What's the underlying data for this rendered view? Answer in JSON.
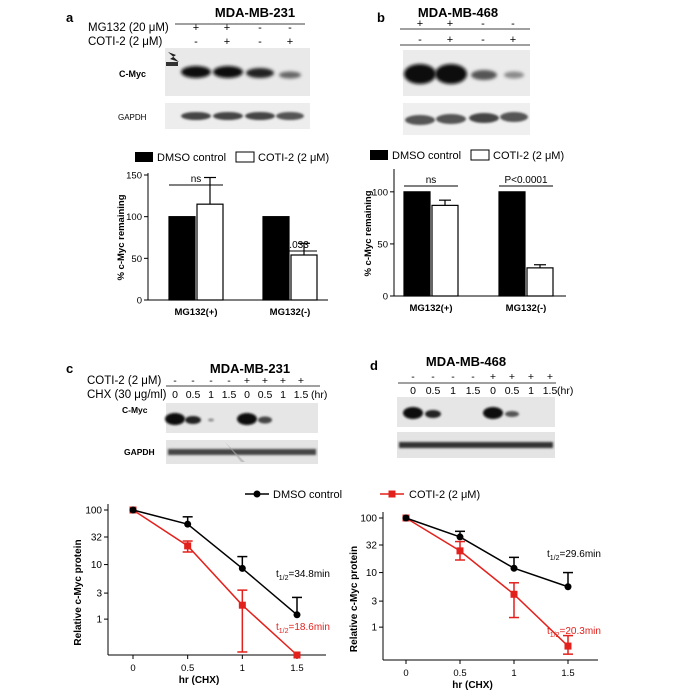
{
  "panels": {
    "a": {
      "letter": "a",
      "cell_line": "MDA-MB-231",
      "treatments": [
        {
          "label": "MG132 (20 μM)",
          "signs": [
            "+",
            "+",
            "-",
            "-"
          ]
        },
        {
          "label": "COTI-2 (2 μM)",
          "signs": [
            "-",
            "+",
            "-",
            "+"
          ]
        }
      ],
      "blot_labels": [
        "C-Myc",
        "GAPDH"
      ],
      "legend": [
        "DMSO control",
        "COTI-2 (2 μM)"
      ]
    },
    "b": {
      "letter": "b",
      "cell_line": "MDA-MB-468",
      "treatments": [
        {
          "signs": [
            "+",
            "+",
            "-",
            "-"
          ]
        },
        {
          "signs": [
            "-",
            "+",
            "-",
            "+"
          ]
        }
      ],
      "legend": [
        "DMSO control",
        "COTI-2 (2 μM)"
      ]
    },
    "c": {
      "letter": "c",
      "cell_line": "MDA-MB-231",
      "treatments": [
        {
          "label": "COTI-2 (2 μM)",
          "signs": [
            "-",
            "-",
            "-",
            "-",
            "+",
            "+",
            "+",
            "+"
          ]
        },
        {
          "label": "CHX (30 μg/ml)",
          "signs": [
            "0",
            "0.5",
            "1",
            "1.5",
            "0",
            "0.5",
            "1",
            "1.5"
          ],
          "unit": "(hr)"
        }
      ],
      "blot_labels": [
        "C-Myc",
        "GAPDH"
      ],
      "legend": [
        "DMSO control",
        "COTI-2 (2 μM)"
      ]
    },
    "d": {
      "letter": "d",
      "cell_line": "MDA-MB-468",
      "treatments": [
        {
          "signs": [
            "-",
            "-",
            "-",
            "-",
            "+",
            "+",
            "+",
            "+"
          ]
        },
        {
          "signs": [
            "0",
            "0.5",
            "1",
            "1.5",
            "0",
            "0.5",
            "1",
            "1.5"
          ],
          "unit": "(hr)"
        }
      ]
    }
  },
  "colors": {
    "dmso": "#000000",
    "coti": "#e3211c"
  },
  "chart_data": [
    {
      "id": "chart-a",
      "type": "bar",
      "categories": [
        "MG132(+)",
        "MG132(-)"
      ],
      "series": [
        {
          "name": "DMSO control",
          "values": [
            100,
            100
          ],
          "errors": [
            0,
            0
          ]
        },
        {
          "name": "COTI-2 (2 μM)",
          "values": [
            115,
            54
          ],
          "errors": [
            32,
            14
          ]
        }
      ],
      "ylabel": "% c-Myc remaining",
      "ylim": [
        0,
        150
      ],
      "yticks": [
        "0",
        "50",
        "100",
        "150"
      ],
      "annotations": [
        "ns",
        "P=0.033"
      ]
    },
    {
      "id": "chart-b",
      "type": "bar",
      "categories": [
        "MG132(+)",
        "MG132(-)"
      ],
      "series": [
        {
          "name": "DMSO control",
          "values": [
            100,
            100
          ],
          "errors": [
            0,
            0
          ]
        },
        {
          "name": "COTI-2 (2 μM)",
          "values": [
            87,
            27
          ],
          "errors": [
            5,
            3
          ]
        }
      ],
      "ylabel": "% c-Myc remaining",
      "ylim": [
        0,
        120
      ],
      "yticks": [
        "0",
        "50",
        "100"
      ],
      "annotations": [
        "ns",
        "P<0.0001"
      ]
    },
    {
      "id": "chart-c",
      "type": "line",
      "x": [
        0,
        0.5,
        1,
        1.5
      ],
      "xticks": [
        "0",
        "0.5",
        "1",
        "1.5"
      ],
      "series": [
        {
          "name": "DMSO control",
          "values": [
            100,
            55,
            8.5,
            1.2
          ],
          "err_up": [
            0,
            20,
            5.5,
            1.3
          ],
          "err_down": [
            0,
            0,
            0,
            0
          ]
        },
        {
          "name": "COTI-2 (2 μM)",
          "values": [
            100,
            22,
            1.8,
            0.22
          ],
          "err_up": [
            0,
            5,
            1.6,
            0
          ],
          "err_down": [
            0,
            5,
            1.55,
            0
          ]
        }
      ],
      "xlabel": "hr (CHX)",
      "ylabel": "Relative c-Myc protein",
      "yscale": "log",
      "yticks": [
        "100",
        "32",
        "10",
        "3",
        "1"
      ],
      "half_life_dmso": {
        "prefix": "t",
        "sub": "1/2",
        "suffix": "=34.8min"
      },
      "half_life_coti": {
        "prefix": "t",
        "sub": "1/2",
        "suffix": "=18.6min"
      }
    },
    {
      "id": "chart-d",
      "type": "line",
      "x": [
        0,
        0.5,
        1,
        1.5
      ],
      "xticks": [
        "0",
        "0.5",
        "1",
        "1.5"
      ],
      "series": [
        {
          "name": "DMSO control",
          "values": [
            100,
            45,
            12,
            5.5
          ],
          "err_up": [
            0,
            12,
            7,
            4.5
          ],
          "err_down": [
            0,
            0,
            0,
            0
          ]
        },
        {
          "name": "COTI-2 (2 μM)",
          "values": [
            100,
            25,
            4,
            0.45
          ],
          "err_up": [
            0,
            12,
            2.5,
            0.25
          ],
          "err_down": [
            0,
            8,
            2.5,
            0.13
          ]
        }
      ],
      "xlabel": "hr (CHX)",
      "ylabel": "Relative c-Myc protein",
      "yscale": "log",
      "yticks": [
        "100",
        "32",
        "10",
        "3",
        "1"
      ],
      "half_life_dmso": {
        "prefix": "t",
        "sub": "1/2",
        "suffix": "=29.6min"
      },
      "half_life_coti": {
        "prefix": "t",
        "sub": "1/2",
        "suffix": "=20.3min"
      }
    }
  ]
}
